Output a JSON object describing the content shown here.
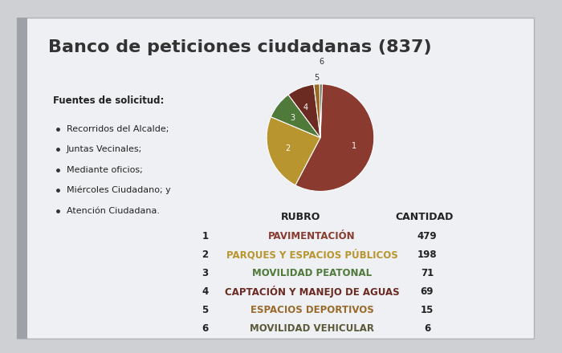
{
  "chart_data": {
    "type": "pie",
    "title": "Banco de peticiones ciudadanas (837)",
    "categories": [
      "PAVIMENTACIÓN",
      "PARQUES Y ESPACIOS PÚBLICOS",
      "MOVILIDAD PEATONAL",
      "CAPTACIÓN Y MANEJO DE AGUAS",
      "ESPACIOS DEPORTIVOS",
      "MOVILIDAD VEHICULAR"
    ],
    "values": [
      479,
      198,
      71,
      69,
      15,
      6
    ],
    "slice_labels": [
      1,
      2,
      3,
      4,
      5,
      6
    ],
    "colors": [
      "#8b3a2f",
      "#b8952e",
      "#4f7a3a",
      "#6b2a22",
      "#9a6a2a",
      "#5a5a3a"
    ],
    "table_headers": [
      "RUBRO",
      "CANTIDAD"
    ]
  },
  "sources": {
    "title": "Fuentes de solicitud:",
    "items": [
      "Recorridos del Alcalde;",
      "Juntas Vecinales;",
      "Mediante oficios;",
      "Miércoles Ciudadano; y",
      "Atención Ciudadana."
    ]
  }
}
